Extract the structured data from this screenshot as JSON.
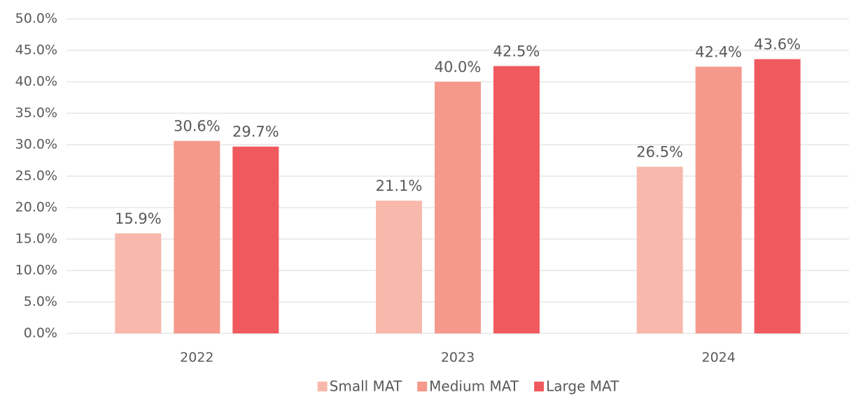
{
  "chart_data": {
    "type": "bar",
    "categories": [
      "2022",
      "2023",
      "2024"
    ],
    "series": [
      {
        "name": "Small MAT",
        "color": "#f8b9ac",
        "values": [
          15.9,
          21.1,
          26.5
        ],
        "value_labels": [
          "15.9%",
          "21.1%",
          "26.5%"
        ]
      },
      {
        "name": "Medium MAT",
        "color": "#f4998c",
        "values": [
          30.6,
          40.0,
          42.4
        ],
        "value_labels": [
          "30.6%",
          "40.0%",
          "42.4%"
        ]
      },
      {
        "name": "Large MAT",
        "color": "#f05a5e",
        "values": [
          29.7,
          42.5,
          43.6
        ],
        "value_labels": [
          "29.7%",
          "42.5%",
          "43.6%"
        ]
      }
    ],
    "ylim": [
      0,
      50
    ],
    "yticks": [
      {
        "value": 0,
        "label": "0.0%"
      },
      {
        "value": 5,
        "label": "5.0%"
      },
      {
        "value": 10,
        "label": "10.0%"
      },
      {
        "value": 15,
        "label": "15.0%"
      },
      {
        "value": 20,
        "label": "20.0%"
      },
      {
        "value": 25,
        "label": "25.0%"
      },
      {
        "value": 30,
        "label": "30.0%"
      },
      {
        "value": 35,
        "label": "35.0%"
      },
      {
        "value": 40,
        "label": "40.0%"
      },
      {
        "value": 45,
        "label": "45.0%"
      },
      {
        "value": 50,
        "label": "50.0%"
      }
    ],
    "grid": true,
    "legend": "bottom"
  }
}
